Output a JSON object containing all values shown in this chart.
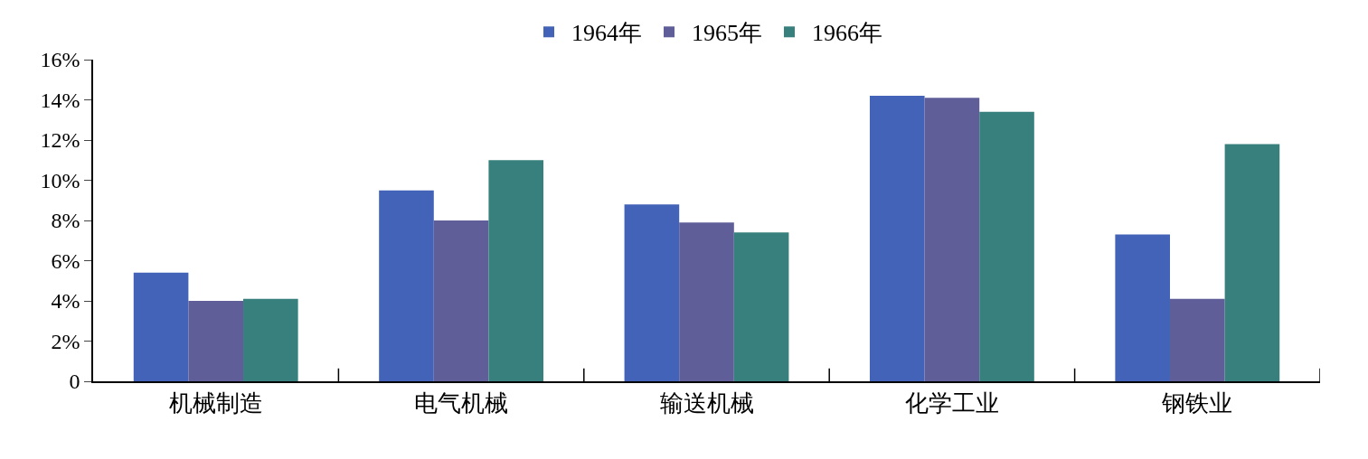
{
  "chart_data": {
    "type": "bar",
    "categories": [
      "机械制造",
      "电气机械",
      "输送机械",
      "化学工业",
      "钢铁业"
    ],
    "series": [
      {
        "name": "1964年",
        "color": "#4363b8",
        "values": [
          5.4,
          9.5,
          8.8,
          14.2,
          7.3
        ]
      },
      {
        "name": "1965年",
        "color": "#5f5e99",
        "values": [
          4.0,
          8.0,
          7.9,
          14.1,
          4.1
        ]
      },
      {
        "name": "1966年",
        "color": "#37807d",
        "values": [
          4.1,
          11.0,
          7.4,
          13.4,
          11.8
        ]
      }
    ],
    "ylim": [
      0,
      16
    ],
    "yticks": [
      0,
      {
        "value": 2,
        "label": "2%"
      },
      {
        "value": 4,
        "label": "4%"
      },
      {
        "value": 6,
        "label": "6%"
      },
      {
        "value": 8,
        "label": "8%"
      },
      {
        "value": 10,
        "label": "10%"
      },
      {
        "value": 12,
        "label": "12%"
      },
      {
        "value": 14,
        "label": "14%"
      },
      {
        "value": 16,
        "label": "16%"
      }
    ],
    "grid": false,
    "legend": "top"
  }
}
